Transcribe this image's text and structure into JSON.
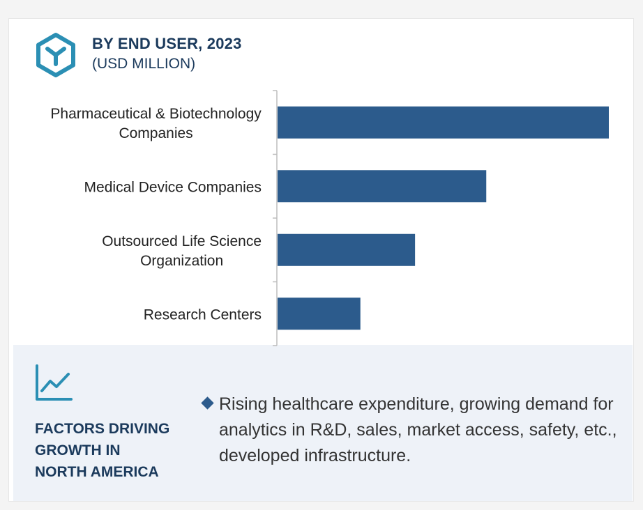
{
  "header": {
    "title": "BY END USER, 2023",
    "subtitle": "(USD MILLION)",
    "logo_icon": "hexagon-y-logo-icon"
  },
  "chart_data": {
    "type": "bar",
    "orientation": "horizontal",
    "title": "BY END USER, 2023",
    "ylabel": "",
    "xlabel": "",
    "unit": "USD MILLION",
    "categories": [
      [
        "Pharmaceutical & Biotechnology",
        "Companies"
      ],
      [
        "Medical Device Companies"
      ],
      [
        "Outsourced Life Science",
        "Organization"
      ],
      [
        "Research Centers"
      ]
    ],
    "values": [
      100,
      63,
      41.5,
      25
    ],
    "value_scale": "relative (no axis ticks printed)",
    "xlim": [
      0,
      100
    ],
    "bar_color": "#2c5b8c",
    "grid": false
  },
  "factors": {
    "title_lines": [
      "FACTORS DRIVING",
      "GROWTH IN",
      "NORTH AMERICA"
    ],
    "text": "Rising healthcare expenditure, growing demand for analytics in R&D, sales, market access, safety, etc., developed infrastructure.",
    "icon": "trend-chart-icon",
    "bullet_icon": "diamond-bullet-icon"
  },
  "colors": {
    "accent": "#2c5b8c",
    "logo": "#2b8fb4",
    "title": "#1b3a5c",
    "panel_bg": "#eef2f8"
  }
}
